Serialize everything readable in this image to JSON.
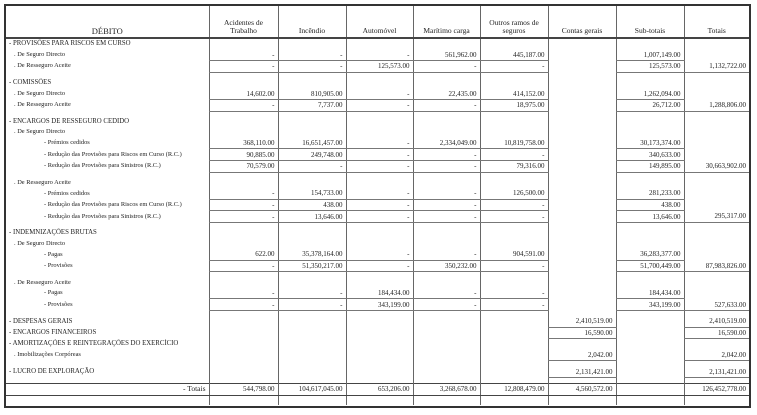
{
  "header": {
    "debit_label": "DÉBITO",
    "columns": [
      "Acidentes de Trabalho",
      "Incêndio",
      "Automóvel",
      "Marítimo carga",
      "Outros ramos de seguros",
      "Contas gerais",
      "Sub-totais",
      "Totais"
    ]
  },
  "rows": [
    {
      "label": "- PROVISÕES PARA RISCOS EM CURSO",
      "level": 0,
      "values": [
        "",
        "",
        "",
        "",
        "",
        "",
        "",
        ""
      ]
    },
    {
      "label": ". De Seguro Directo",
      "level": 1,
      "values": [
        "-",
        "-",
        "-",
        "561,962.00",
        "445,187.00",
        "",
        "1,007,149.00",
        ""
      ]
    },
    {
      "label": ". De Resseguro Aceite",
      "level": 1,
      "values": [
        "-",
        "-",
        "125,573.00",
        "-",
        "-",
        "",
        "125,573.00",
        "1,132,722.00"
      ]
    },
    {
      "spacer": true
    },
    {
      "label": "- COMISSÕES",
      "level": 0,
      "values": [
        "",
        "",
        "",
        "",
        "",
        "",
        "",
        ""
      ]
    },
    {
      "label": ". De Seguro Directo",
      "level": 1,
      "values": [
        "14,602.00",
        "810,905.00",
        "-",
        "22,435.00",
        "414,152.00",
        "",
        "1,262,094.00",
        ""
      ]
    },
    {
      "label": ". De Resseguro Aceite",
      "level": 1,
      "values": [
        "-",
        "7,737.00",
        "-",
        "-",
        "18,975.00",
        "",
        "26,712.00",
        "1,288,806.00"
      ]
    },
    {
      "spacer": true
    },
    {
      "label": "- ENCARGOS DE RESSEGURO CEDIDO",
      "level": 0,
      "values": [
        "",
        "",
        "",
        "",
        "",
        "",
        "",
        ""
      ]
    },
    {
      "label": ". De Seguro Directo",
      "level": 1,
      "values": [
        "",
        "",
        "",
        "",
        "",
        "",
        "",
        ""
      ]
    },
    {
      "label": "- Prémios cedidos",
      "level": 2,
      "values": [
        "368,110.00",
        "16,651,457.00",
        "-",
        "2,334,049.00",
        "10,819,758.00",
        "",
        "30,173,374.00",
        ""
      ]
    },
    {
      "label": "- Redução das Provisões para Riscos em Curso (R.C.)",
      "level": 2,
      "values": [
        "90,885.00",
        "249,748.00",
        "-",
        "-",
        "-",
        "",
        "340,633.00",
        ""
      ]
    },
    {
      "label": "- Redução das Provisões para Sinistros (R.C.)",
      "level": 2,
      "values": [
        "70,579.00",
        "-",
        "-",
        "-",
        "79,316.00",
        "",
        "149,895.00",
        "30,663,902.00"
      ]
    },
    {
      "spacer": true
    },
    {
      "label": ". De Resseguro Aceite",
      "level": 1,
      "values": [
        "",
        "",
        "",
        "",
        "",
        "",
        "",
        ""
      ]
    },
    {
      "label": "- Prémios cedidos",
      "level": 2,
      "values": [
        "-",
        "154,733.00",
        "-",
        "-",
        "126,500.00",
        "",
        "281,233.00",
        ""
      ]
    },
    {
      "label": "- Redução das Provisões para Riscos em Curso (R.C.)",
      "level": 2,
      "values": [
        "-",
        "438.00",
        "-",
        "-",
        "-",
        "",
        "438.00",
        ""
      ]
    },
    {
      "label": "- Redução das Provisões para Sinistros (R.C.)",
      "level": 2,
      "values": [
        "-",
        "13,646.00",
        "-",
        "-",
        "-",
        "",
        "13,646.00",
        "295,317.00"
      ]
    },
    {
      "spacer": true
    },
    {
      "label": "- INDEMNIZAÇÕES BRUTAS",
      "level": 0,
      "values": [
        "",
        "",
        "",
        "",
        "",
        "",
        "",
        ""
      ]
    },
    {
      "label": ". De Seguro Directo",
      "level": 1,
      "values": [
        "",
        "",
        "",
        "",
        "",
        "",
        "",
        ""
      ]
    },
    {
      "label": "- Pagas",
      "level": 2,
      "values": [
        "622.00",
        "35,378,164.00",
        "-",
        "-",
        "904,591.00",
        "",
        "36,283,377.00",
        ""
      ]
    },
    {
      "label": "- Provisões",
      "level": 2,
      "values": [
        "-",
        "51,350,217.00",
        "-",
        "350,232.00",
        "-",
        "",
        "51,700,449.00",
        "87,983,826.00"
      ]
    },
    {
      "spacer": true
    },
    {
      "label": ". De Resseguro Aceite",
      "level": 1,
      "values": [
        "",
        "",
        "",
        "",
        "",
        "",
        "",
        ""
      ]
    },
    {
      "label": "- Pagas",
      "level": 2,
      "values": [
        "-",
        "-",
        "184,434.00",
        "-",
        "-",
        "",
        "184,434.00",
        ""
      ]
    },
    {
      "label": "- Provisões",
      "level": 2,
      "values": [
        "-",
        "-",
        "343,199.00",
        "-",
        "-",
        "",
        "343,199.00",
        "527,633.00"
      ]
    },
    {
      "spacer": true
    },
    {
      "label": "- DESPESAS GERAIS",
      "level": 0,
      "values": [
        "",
        "",
        "",
        "",
        "",
        "2,410,519.00",
        "",
        "2,410,519.00"
      ]
    },
    {
      "label": "- ENCARGOS FINANCEIROS",
      "level": 0,
      "values": [
        "",
        "",
        "",
        "",
        "",
        "16,590.00",
        "",
        "16,590.00"
      ]
    },
    {
      "label": "- AMORTIZAÇÕES E REINTEGRAÇÕES DO EXERCÍCIO",
      "level": 0,
      "values": [
        "",
        "",
        "",
        "",
        "",
        "",
        "",
        ""
      ]
    },
    {
      "label": ". Imobilizações Corpóreas",
      "level": 1,
      "values": [
        "",
        "",
        "",
        "",
        "",
        "2,042.00",
        "",
        "2,042.00"
      ]
    },
    {
      "spacer": true
    },
    {
      "label": "- LUCRO DE EXPLORAÇÃO",
      "level": 0,
      "values": [
        "",
        "",
        "",
        "",
        "",
        "2,131,421.00",
        "",
        "2,131,421.00"
      ]
    },
    {
      "spacer": true
    }
  ],
  "totals": {
    "label": "- Totais",
    "values": [
      "544,798.00",
      "104,617,045.00",
      "653,206.00",
      "3,268,678.00",
      "12,808,479.00",
      "4,560,572.00",
      "",
      "126,452,778.00"
    ]
  }
}
